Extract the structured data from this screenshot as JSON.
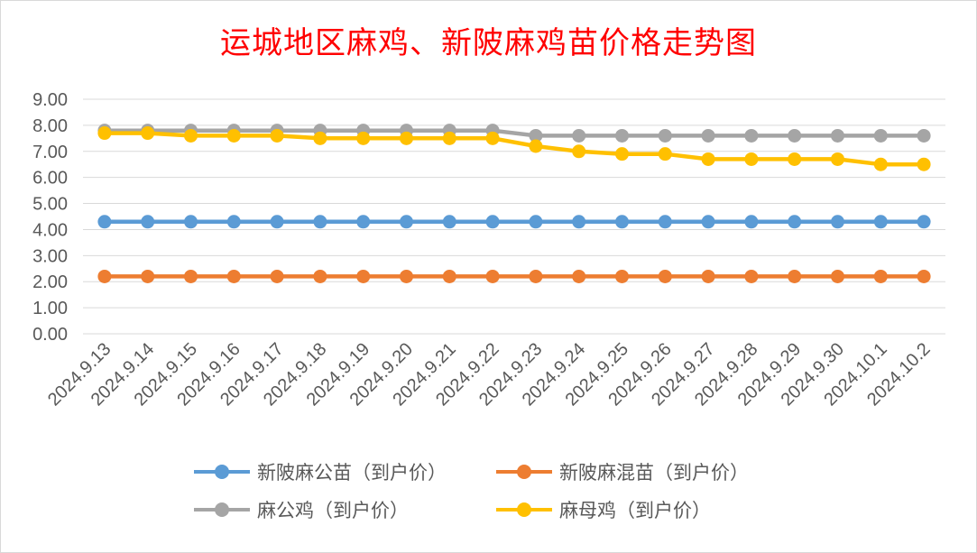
{
  "chart_data": {
    "type": "line",
    "title": "运城地区麻鸡、新陂麻鸡苗价格走势图",
    "xlabel": "",
    "ylabel": "",
    "ylim": [
      0,
      9
    ],
    "yticks": [
      "0.00",
      "1.00",
      "2.00",
      "3.00",
      "4.00",
      "5.00",
      "6.00",
      "7.00",
      "8.00",
      "9.00"
    ],
    "grid": true,
    "legend_position": "bottom",
    "categories": [
      "2024.9.13",
      "2024.9.14",
      "2024.9.15",
      "2024.9.16",
      "2024.9.17",
      "2024.9.18",
      "2024.9.19",
      "2024.9.20",
      "2024.9.21",
      "2024.9.22",
      "2024.9.23",
      "2024.9.24",
      "2024.9.25",
      "2024.9.26",
      "2024.9.27",
      "2024.9.28",
      "2024.9.29",
      "2024.9.30",
      "2024.10.1",
      "2024.10.2"
    ],
    "series": [
      {
        "name": "新陂麻公苗（到户价）",
        "color": "#5b9bd5",
        "values": [
          4.3,
          4.3,
          4.3,
          4.3,
          4.3,
          4.3,
          4.3,
          4.3,
          4.3,
          4.3,
          4.3,
          4.3,
          4.3,
          4.3,
          4.3,
          4.3,
          4.3,
          4.3,
          4.3,
          4.3
        ]
      },
      {
        "name": "新陂麻混苗（到户价）",
        "color": "#ed7d31",
        "values": [
          2.2,
          2.2,
          2.2,
          2.2,
          2.2,
          2.2,
          2.2,
          2.2,
          2.2,
          2.2,
          2.2,
          2.2,
          2.2,
          2.2,
          2.2,
          2.2,
          2.2,
          2.2,
          2.2,
          2.2
        ]
      },
      {
        "name": "麻公鸡（到户价）",
        "color": "#a5a5a5",
        "values": [
          7.8,
          7.8,
          7.8,
          7.8,
          7.8,
          7.8,
          7.8,
          7.8,
          7.8,
          7.8,
          7.6,
          7.6,
          7.6,
          7.6,
          7.6,
          7.6,
          7.6,
          7.6,
          7.6,
          7.6
        ]
      },
      {
        "name": "麻母鸡（到户价）",
        "color": "#ffc000",
        "values": [
          7.7,
          7.7,
          7.6,
          7.6,
          7.6,
          7.5,
          7.5,
          7.5,
          7.5,
          7.5,
          7.2,
          7.0,
          6.9,
          6.9,
          6.7,
          6.7,
          6.7,
          6.7,
          6.5,
          6.5
        ]
      }
    ]
  }
}
